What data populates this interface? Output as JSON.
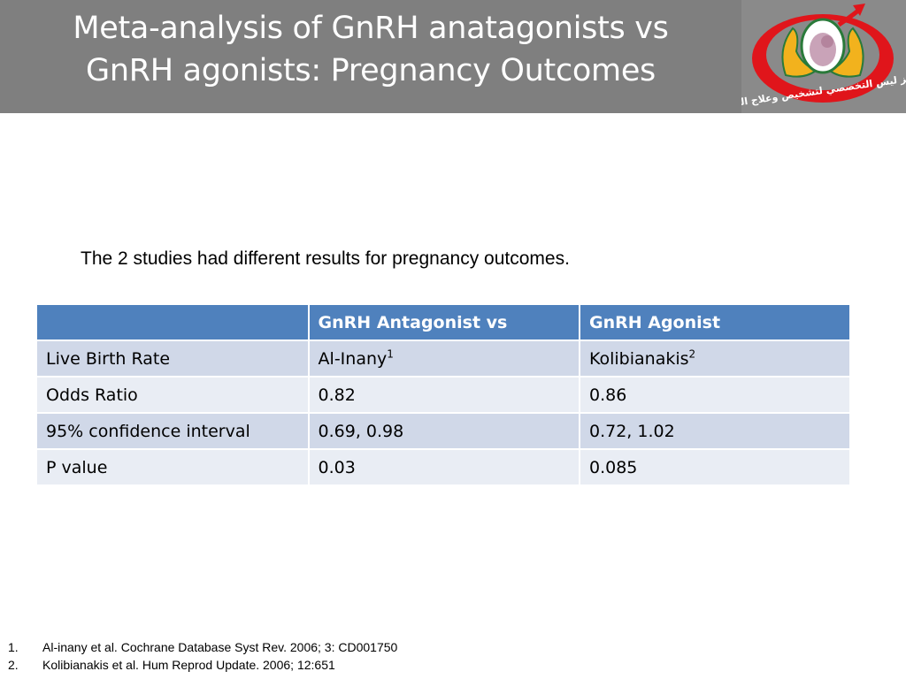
{
  "title": {
    "line1": "Meta-analysis of GnRH anatagonists vs",
    "line2": "GnRH agonists: Pregnancy Outcomes"
  },
  "logo": {
    "icon": "clinic-logo-icon",
    "text": "مركز ليس التخصصي لتشخيص وعلاج العقم",
    "colors": {
      "ring": "#e0151b",
      "hands": "#f2b21d",
      "outline": "#2a7a3a"
    }
  },
  "intro": "The 2 studies had different results for pregnancy outcomes.",
  "table": {
    "headers": [
      "",
      "GnRH Antagonist vs",
      "GnRH Agonist"
    ],
    "rows": [
      {
        "label": "Live Birth Rate",
        "c1": "Al-Inany",
        "c1_sup": "1",
        "c2": "Kolibianakis",
        "c2_sup": "2"
      },
      {
        "label": "Odds Ratio",
        "c1": "0.82",
        "c2": "0.86"
      },
      {
        "label": "95% confidence interval",
        "c1": "0.69, 0.98",
        "c2": "0.72, 1.02"
      },
      {
        "label": "P value",
        "c1": "0.03",
        "c2": "0.085"
      }
    ]
  },
  "references": [
    {
      "num": "1.",
      "text": "Al-inany et al. Cochrane Database Syst Rev. 2006; 3: CD001750"
    },
    {
      "num": "2.",
      "text": "Kolibianakis et al. Hum Reprod Update. 2006; 12:651"
    }
  ],
  "colors": {
    "header_bg": "#7f7f7f",
    "table_header": "#4f81bd",
    "row_dark": "#d0d8e8",
    "row_light": "#e9edf4"
  }
}
